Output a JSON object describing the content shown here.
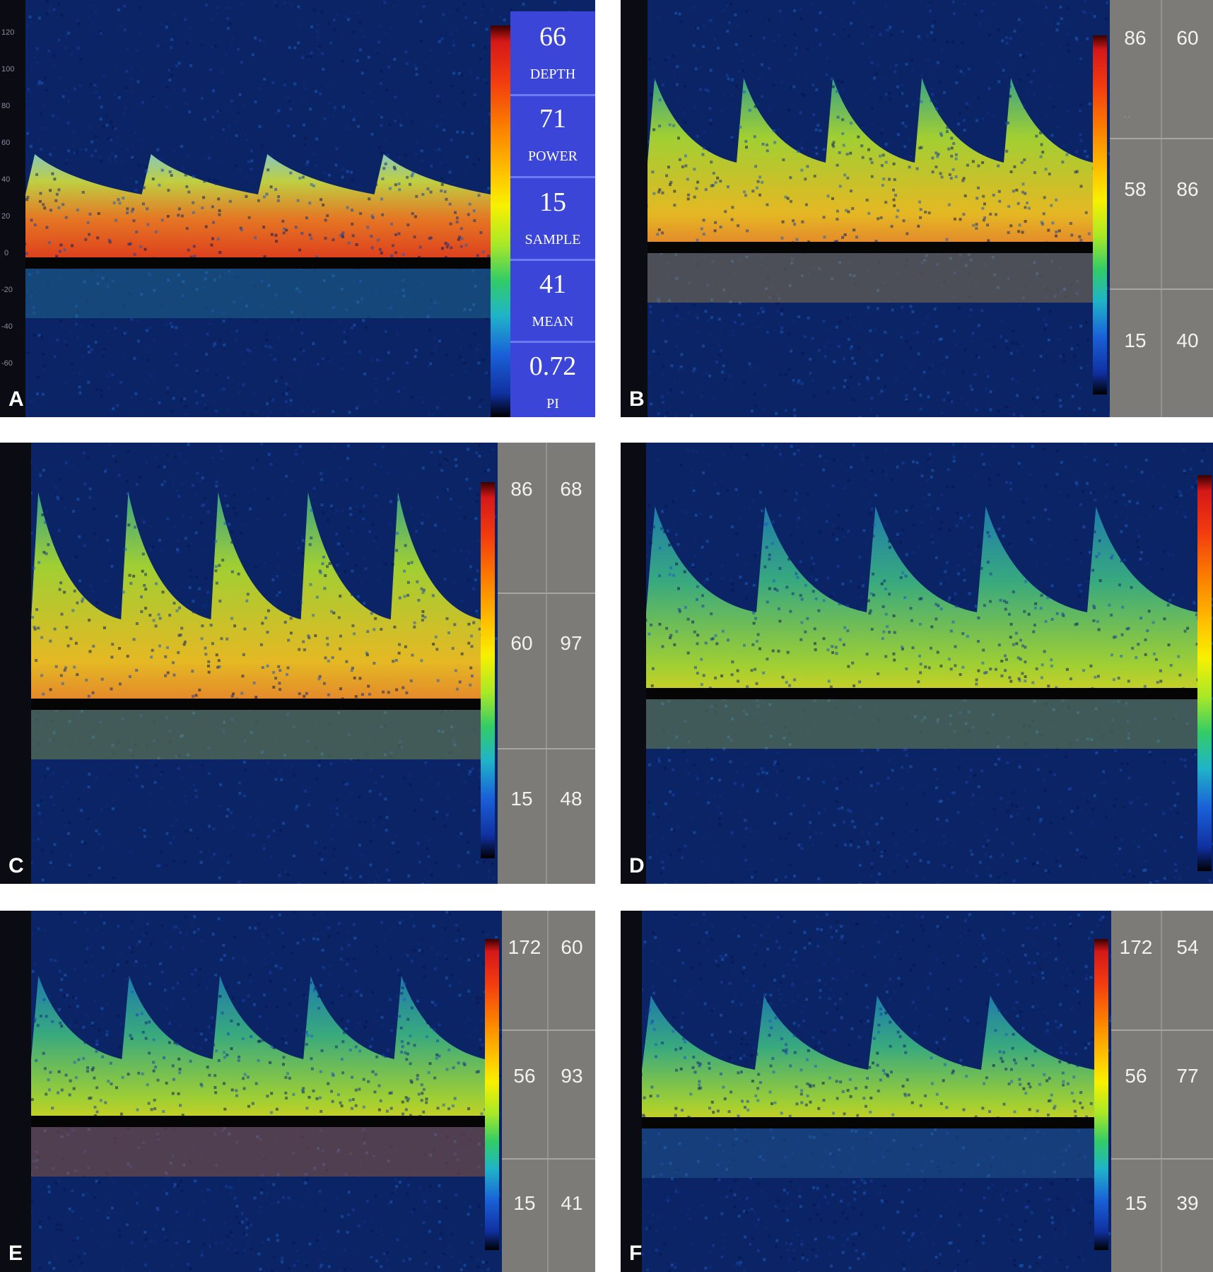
{
  "panels": [
    {
      "letter": "A",
      "info": [
        {
          "value": "66",
          "label": "DEPTH"
        },
        {
          "value": "71",
          "label": "POWER"
        },
        {
          "value": "15",
          "label": "SAMPLE"
        },
        {
          "value": "41",
          "label": "MEAN"
        },
        {
          "value": "0.72",
          "label": "PI"
        }
      ],
      "axis_ticks": [
        "120",
        "100",
        "80",
        "60",
        "40",
        "20",
        "0",
        "-20",
        "-40",
        "-60"
      ]
    },
    {
      "letter": "B",
      "readouts": [
        [
          "86",
          "60"
        ],
        [
          "58",
          "86"
        ],
        [
          "15",
          "40"
        ]
      ]
    },
    {
      "letter": "C",
      "readouts": [
        [
          "86",
          "68"
        ],
        [
          "60",
          "97"
        ],
        [
          "15",
          "48"
        ]
      ]
    },
    {
      "letter": "D"
    },
    {
      "letter": "E",
      "readouts": [
        [
          "172",
          "60"
        ],
        [
          "56",
          "93"
        ],
        [
          "15",
          "41"
        ]
      ]
    },
    {
      "letter": "F",
      "readouts": [
        [
          "172",
          "54"
        ],
        [
          "56",
          "77"
        ],
        [
          "15",
          "39"
        ]
      ]
    }
  ],
  "colors": {
    "background": "#0a1a4a",
    "sidebar": "#7d7b78",
    "infobox": "#3b46d8"
  }
}
